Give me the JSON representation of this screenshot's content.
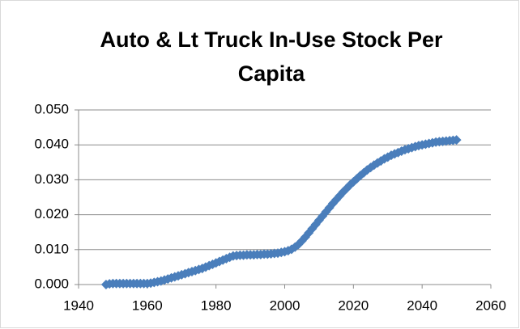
{
  "chart_data": {
    "type": "scatter",
    "title": "Auto & Lt Truck In-Use Stock Per Capita",
    "color": "#4a7ebb",
    "grid": true,
    "x": [
      1948,
      1949,
      1950,
      1951,
      1952,
      1953,
      1954,
      1955,
      1956,
      1957,
      1958,
      1959,
      1960,
      1961,
      1962,
      1963,
      1964,
      1965,
      1966,
      1967,
      1968,
      1969,
      1970,
      1971,
      1972,
      1973,
      1974,
      1975,
      1976,
      1977,
      1978,
      1979,
      1980,
      1981,
      1982,
      1983,
      1984,
      1985,
      1986,
      1987,
      1988,
      1989,
      1990,
      1991,
      1992,
      1993,
      1994,
      1995,
      1996,
      1997,
      1998,
      1999,
      2000,
      2001,
      2002,
      2003,
      2004,
      2005,
      2006,
      2007,
      2008,
      2009,
      2010,
      2011,
      2012,
      2013,
      2014,
      2015,
      2016,
      2017,
      2018,
      2019,
      2020,
      2021,
      2022,
      2023,
      2024,
      2025,
      2026,
      2027,
      2028,
      2029,
      2030,
      2031,
      2032,
      2033,
      2034,
      2035,
      2036,
      2037,
      2038,
      2039,
      2040,
      2041,
      2042,
      2043,
      2044,
      2045,
      2046,
      2047,
      2048,
      2049,
      2050
    ],
    "values": [
      0.0,
      0.0002,
      0.0003,
      0.0003,
      0.0003,
      0.0003,
      0.0003,
      0.0003,
      0.0003,
      0.0003,
      0.0003,
      0.0003,
      0.0003,
      0.0004,
      0.0006,
      0.0008,
      0.001,
      0.0013,
      0.0016,
      0.0019,
      0.0022,
      0.0025,
      0.0028,
      0.0031,
      0.0034,
      0.0037,
      0.004,
      0.0043,
      0.0046,
      0.005,
      0.0054,
      0.0058,
      0.0062,
      0.0066,
      0.007,
      0.0074,
      0.0078,
      0.0082,
      0.0083,
      0.0084,
      0.0084,
      0.0085,
      0.0085,
      0.0085,
      0.0086,
      0.0086,
      0.0087,
      0.0087,
      0.0088,
      0.0089,
      0.009,
      0.0092,
      0.0094,
      0.0097,
      0.0101,
      0.0107,
      0.0115,
      0.0125,
      0.0136,
      0.0148,
      0.016,
      0.0172,
      0.0184,
      0.0196,
      0.0208,
      0.022,
      0.0232,
      0.0243,
      0.0254,
      0.0265,
      0.0275,
      0.0285,
      0.0294,
      0.0303,
      0.0312,
      0.032,
      0.0328,
      0.0335,
      0.0342,
      0.0348,
      0.0354,
      0.036,
      0.0365,
      0.037,
      0.0374,
      0.0378,
      0.0382,
      0.0386,
      0.0389,
      0.0392,
      0.0395,
      0.0398,
      0.04,
      0.0402,
      0.0404,
      0.0406,
      0.0408,
      0.0409,
      0.041,
      0.0411,
      0.0412,
      0.0413,
      0.0414
    ],
    "xlim": [
      1940,
      2060
    ],
    "xticks": [
      1940,
      1960,
      1980,
      2000,
      2020,
      2040,
      2060
    ],
    "ylim": [
      0,
      0.05
    ],
    "yticks": [
      {
        "value": 0,
        "label": "0.000"
      },
      {
        "value": 0.01,
        "label": "0.010"
      },
      {
        "value": 0.02,
        "label": "0.020"
      },
      {
        "value": 0.03,
        "label": "0.030"
      },
      {
        "value": 0.04,
        "label": "0.040"
      },
      {
        "value": 0.05,
        "label": "0.050"
      }
    ]
  }
}
